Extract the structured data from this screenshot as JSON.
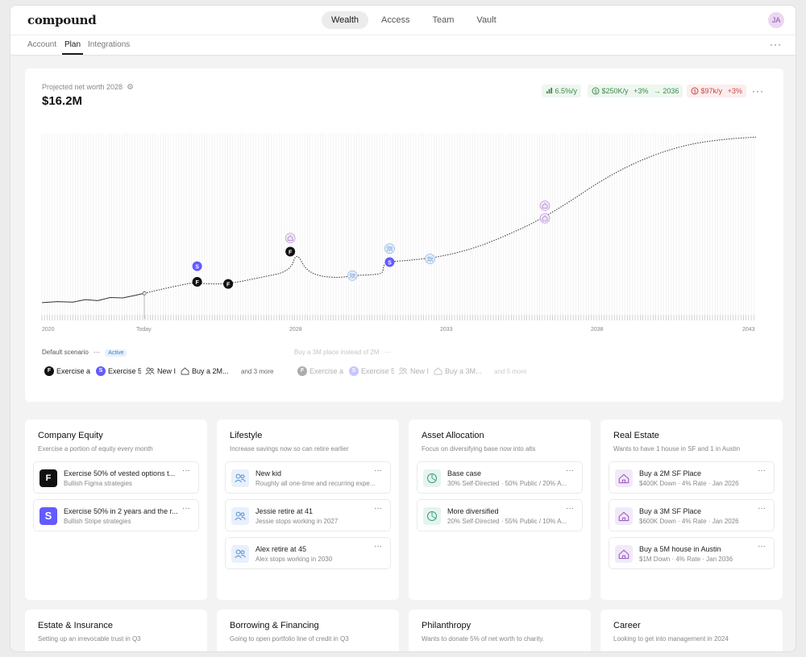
{
  "app": {
    "logo": "compound",
    "nav": [
      "Wealth",
      "Access",
      "Team",
      "Vault"
    ],
    "avatar": "JA",
    "subtabs": [
      "Account",
      "Plan",
      "Integrations"
    ],
    "more": "···"
  },
  "chart": {
    "label": "Projected net worth 2028",
    "value": "$16.2M",
    "pills": {
      "growth": "6.5%/y",
      "income": "$250K/y",
      "income_delta": "+3%",
      "income_until": "→ 2036",
      "expense": "$97k/y",
      "expense_delta": "+3%"
    },
    "more": "···"
  },
  "chart_data": {
    "type": "line",
    "x_ticks": [
      "2020",
      "Today",
      "2028",
      "2033",
      "2038",
      "2043"
    ],
    "series": [
      {
        "values": [
          [
            2020,
            0.4
          ],
          [
            2022,
            0.6
          ],
          [
            2024,
            1.2
          ],
          [
            2025,
            1.5
          ],
          [
            2026,
            1.3
          ],
          [
            2027,
            1.8
          ],
          [
            2028,
            2.8
          ],
          [
            2028.5,
            1.7
          ],
          [
            2029.5,
            1.6
          ],
          [
            2030,
            2.0
          ],
          [
            2030.8,
            2.0
          ],
          [
            2031,
            2.9
          ],
          [
            2032,
            3.0
          ],
          [
            2034,
            3.5
          ],
          [
            2036,
            4.3
          ],
          [
            2038,
            6.0
          ],
          [
            2040,
            7.7
          ],
          [
            2043,
            8.3
          ]
        ],
        "color": "#444444"
      }
    ],
    "colors": {
      "figma": "#111111",
      "stripe": "#635bff",
      "lifestyle": "#7ba7dd",
      "real_estate": "#b487cf",
      "growth": "#3c8a4c",
      "expense": "#cc4444"
    }
  },
  "scenarios": {
    "default_label": "Default scenario",
    "more": "···",
    "active_badge": "Active",
    "alt_label": "Buy a 3M place instead of 2M",
    "default_chips": [
      "Exercise a",
      "Exercise 5",
      "New I",
      "Buy a 2M..."
    ],
    "default_more": "and 3 more",
    "alt_chips": [
      "Exercise a",
      "Exercise 5",
      "New I",
      "Buy a 3M..."
    ],
    "alt_more": "and 5 more"
  },
  "cards": [
    {
      "title": "Company Equity",
      "subtitle": "Exercise a portion of equity every month",
      "items": [
        {
          "title": "Exercise 50% of vested options t...",
          "sub": "Bullish Figma strategies",
          "icon": "figma-icon"
        },
        {
          "title": "Exercise 50% in 2 years and the r...",
          "sub": "Bullish Stripe strategies",
          "icon": "stripe-icon"
        }
      ]
    },
    {
      "title": "Lifestyle",
      "subtitle": "Increase savings now so can retire earlier",
      "items": [
        {
          "title": "New kid",
          "sub": "Roughly all one-time and recurring expe...",
          "icon": "people-icon"
        },
        {
          "title": "Jessie retire at 41",
          "sub": "Jessie stops working in 2027",
          "icon": "people-icon"
        },
        {
          "title": "Alex retire at 45",
          "sub": "Alex stops working in 2030",
          "icon": "people-icon"
        }
      ]
    },
    {
      "title": "Asset Allocation",
      "subtitle": "Focus on diversifying base now into alts",
      "items": [
        {
          "title": "Base case",
          "sub": "30% Self-Directed · 50% Public / 20% A...",
          "icon": "pie-icon"
        },
        {
          "title": "More diversified",
          "sub": "20% Self-Directed · 55% Public / 10% A...",
          "icon": "pie-icon"
        }
      ]
    },
    {
      "title": "Real Estate",
      "subtitle": "Wants to have 1 house in SF and 1 in Austin",
      "items": [
        {
          "title": "Buy a 2M SF Place",
          "sub": "$400K Down · 4% Rate · Jan 2026",
          "icon": "house-icon"
        },
        {
          "title": "Buy a 3M SF Place",
          "sub": "$600K Down · 4% Rate · Jan 2026",
          "icon": "house-icon"
        },
        {
          "title": "Buy a 5M house in Austin",
          "sub": "$1M Down · 4% Rate · Jan 2036",
          "icon": "house-icon"
        }
      ]
    }
  ],
  "bottom_cards": [
    {
      "title": "Estate & Insurance",
      "subtitle": "Setting up an irrevocable trust in Q3"
    },
    {
      "title": "Borrowing & Financing",
      "subtitle": "Going to open portfolio line of credit in Q3"
    },
    {
      "title": "Philanthropy",
      "subtitle": "Wants to donate 5% of net worth to charity."
    },
    {
      "title": "Career",
      "subtitle": "Looking to get into management in 2024"
    }
  ]
}
